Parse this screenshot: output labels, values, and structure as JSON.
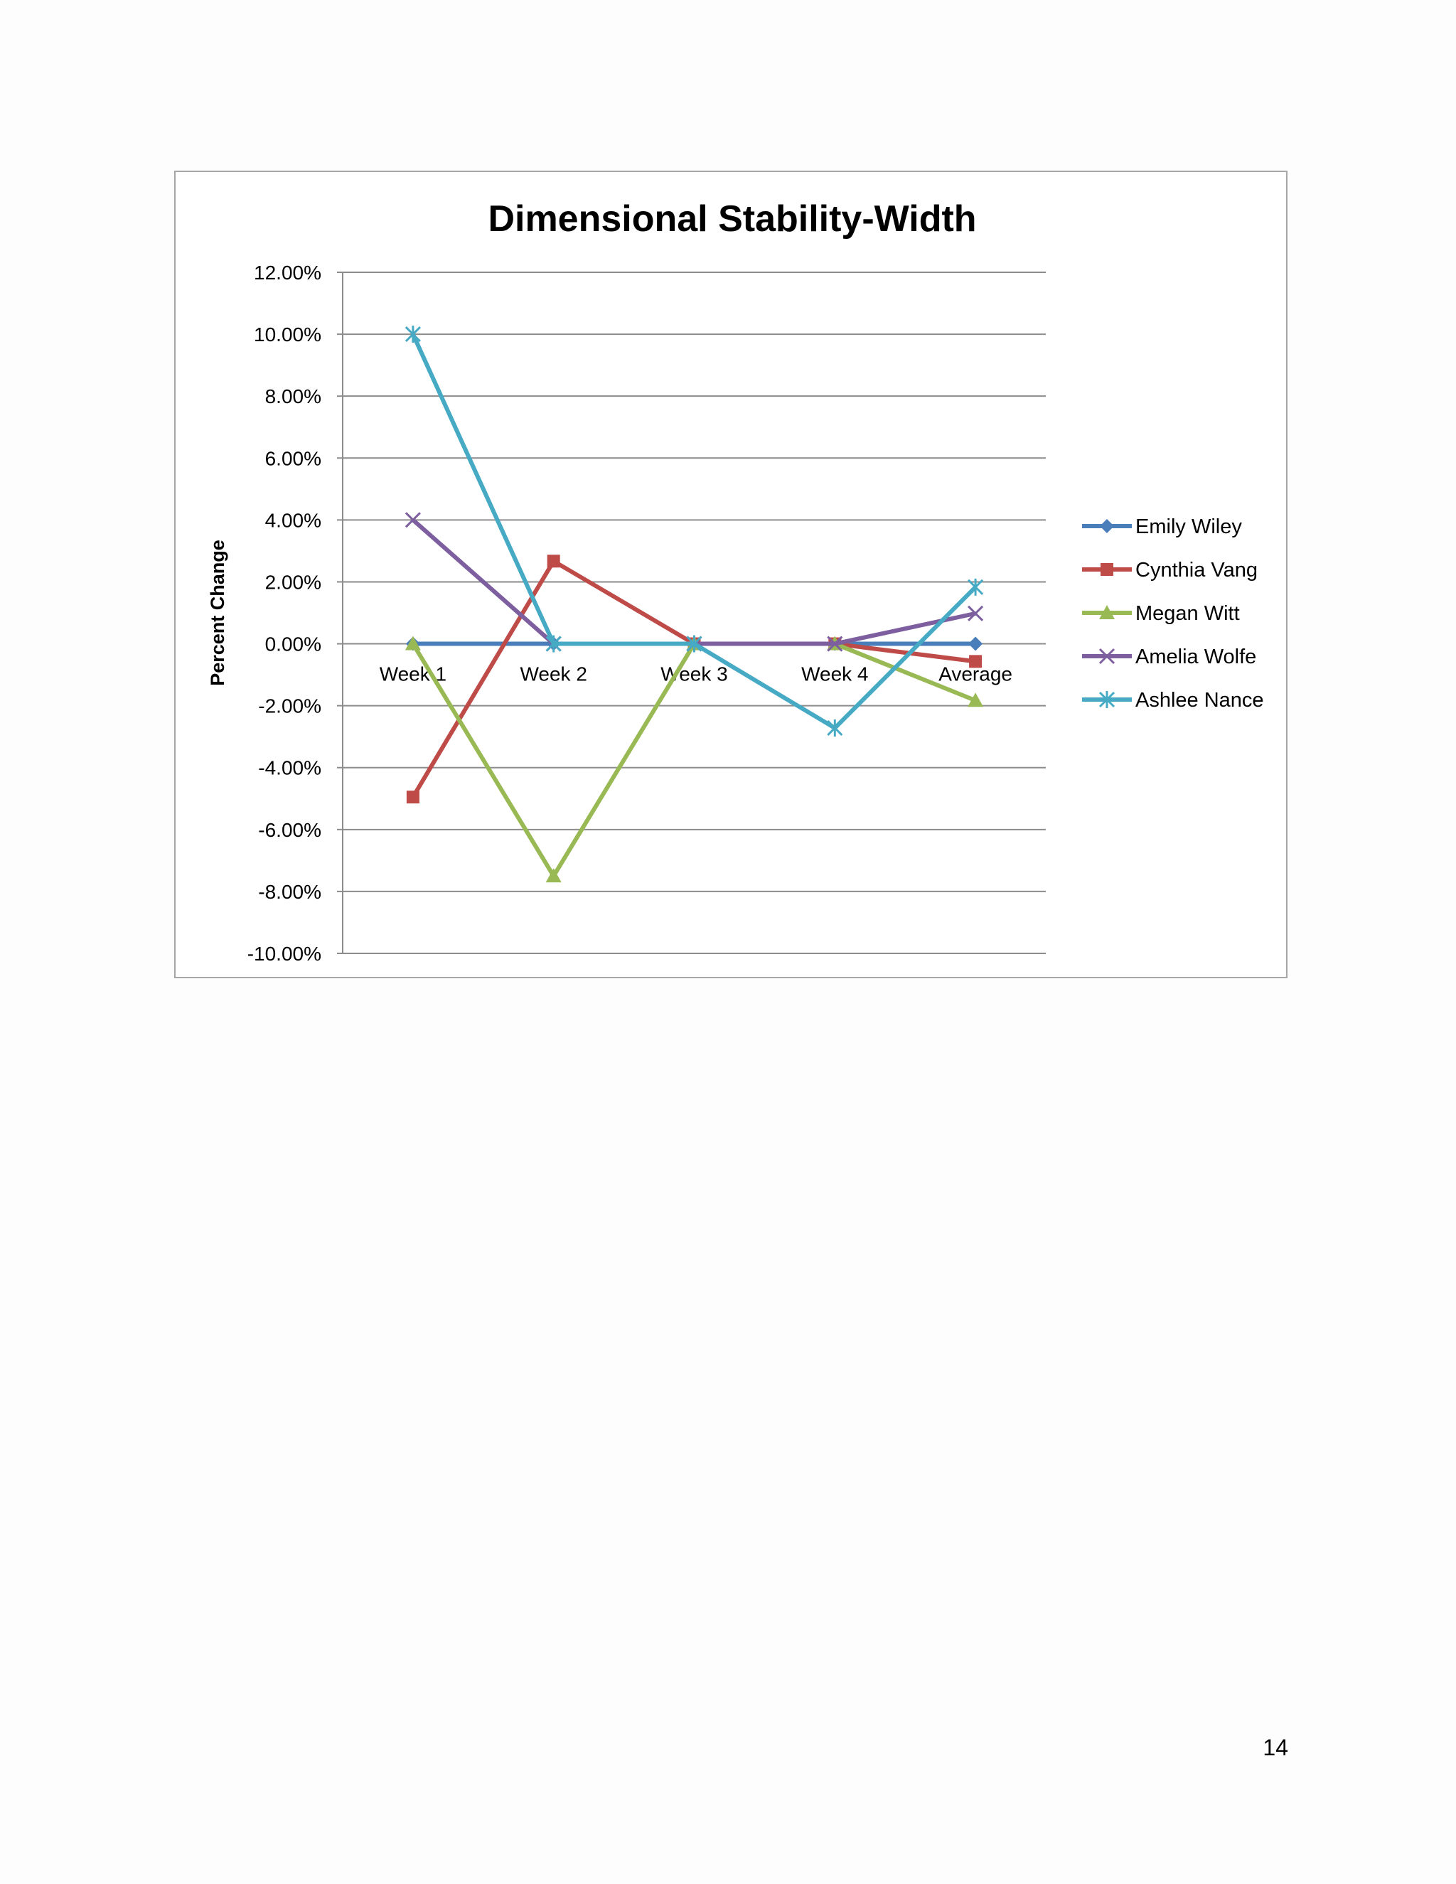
{
  "page": {
    "number": "14"
  },
  "chart_data": {
    "type": "line",
    "title": "Dimensional Stability-Width",
    "xlabel": "",
    "ylabel": "Percent Change",
    "categories": [
      "Week 1",
      "Week 2",
      "Week 3",
      "Week 4",
      "Average"
    ],
    "ylim": [
      -0.1,
      0.12
    ],
    "ytick_step": 0.02,
    "ytick_labels": [
      "12.00%",
      "10.00%",
      "8.00%",
      "6.00%",
      "4.00%",
      "2.00%",
      "0.00%",
      "-2.00%",
      "-4.00%",
      "-6.00%",
      "-8.00%",
      "-10.00%"
    ],
    "grid": true,
    "legend_position": "right",
    "series": [
      {
        "name": "Emily Wiley",
        "color": "#4a7ebb",
        "marker": "diamond",
        "values": [
          0.0,
          0.0,
          0.0,
          0.0,
          0.0
        ]
      },
      {
        "name": "Cynthia Vang",
        "color": "#be4b48",
        "marker": "square",
        "values": [
          -0.0495,
          0.0267,
          0.0,
          0.0,
          -0.0057
        ]
      },
      {
        "name": "Megan Witt",
        "color": "#98b954",
        "marker": "triangle",
        "values": [
          0.0,
          -0.075,
          0.0,
          0.0,
          -0.0183
        ]
      },
      {
        "name": "Amelia Wolfe",
        "color": "#7d5fa0",
        "marker": "x",
        "values": [
          0.04,
          0.0,
          0.0,
          0.0,
          0.0098
        ]
      },
      {
        "name": "Ashlee Nance",
        "color": "#46aac5",
        "marker": "star",
        "values": [
          0.1,
          0.0,
          0.0,
          -0.0272,
          0.0183
        ]
      }
    ]
  }
}
